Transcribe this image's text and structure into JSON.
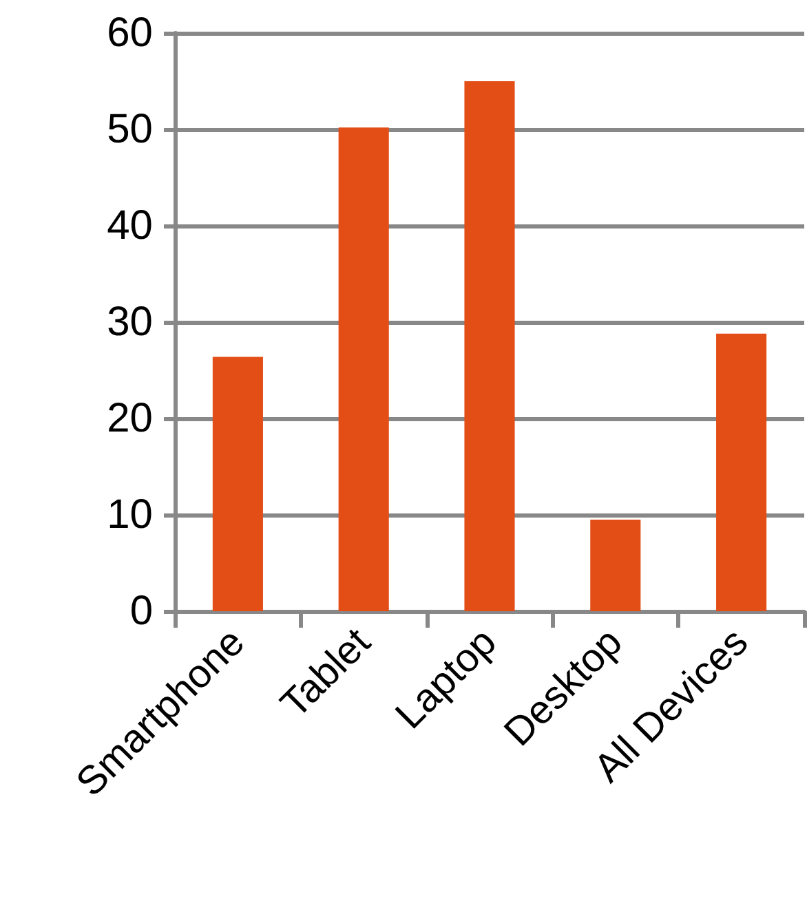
{
  "chart_data": {
    "type": "bar",
    "categories": [
      "Smartphone",
      "Tablet",
      "Laptop",
      "Desktop",
      "All Devices"
    ],
    "values": [
      26.4,
      50.2,
      55.0,
      9.5,
      28.8
    ],
    "color": "#e34e17",
    "ylim": [
      0,
      60
    ],
    "yticks": [
      0,
      10,
      20,
      30,
      40,
      50,
      60
    ],
    "grid": "y"
  }
}
